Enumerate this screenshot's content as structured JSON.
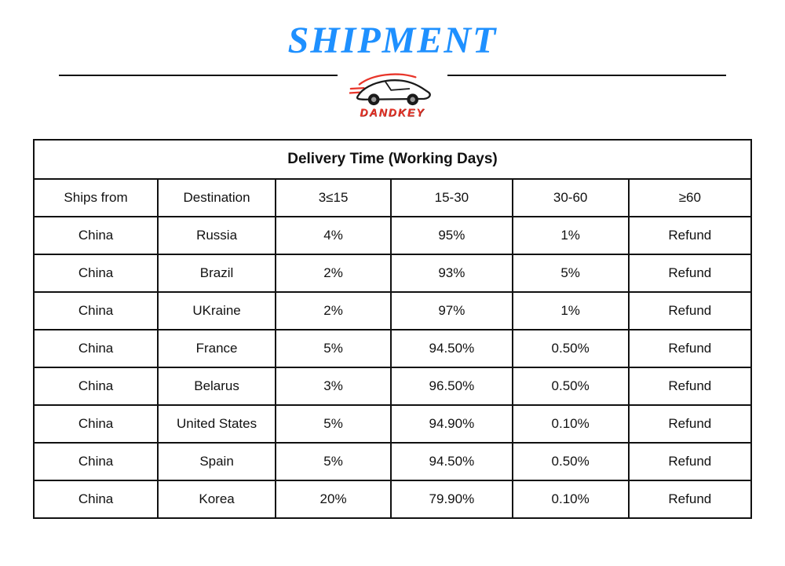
{
  "header": {
    "title": "SHIPMENT"
  },
  "logo": {
    "brand": "DANDKEY",
    "icon": "car-icon"
  },
  "table": {
    "caption": "Delivery Time (Working Days)",
    "columns": [
      "Ships from",
      "Destination",
      "3≤15",
      "15-30",
      "30-60",
      "≥60"
    ],
    "rows": [
      [
        "China",
        "Russia",
        "4%",
        "95%",
        "1%",
        "Refund"
      ],
      [
        "China",
        "Brazil",
        "2%",
        "93%",
        "5%",
        "Refund"
      ],
      [
        "China",
        "UKraine",
        "2%",
        "97%",
        "1%",
        "Refund"
      ],
      [
        "China",
        "France",
        "5%",
        "94.50%",
        "0.50%",
        "Refund"
      ],
      [
        "China",
        "Belarus",
        "3%",
        "96.50%",
        "0.50%",
        "Refund"
      ],
      [
        "China",
        "United States",
        "5%",
        "94.90%",
        "0.10%",
        "Refund"
      ],
      [
        "China",
        "Spain",
        "5%",
        "94.50%",
        "0.50%",
        "Refund"
      ],
      [
        "China",
        "Korea",
        "20%",
        "79.90%",
        "0.10%",
        "Refund"
      ]
    ]
  },
  "colors": {
    "title_blue": "#1e90ff",
    "brand_red": "#e8352a",
    "table_border": "#111111"
  }
}
